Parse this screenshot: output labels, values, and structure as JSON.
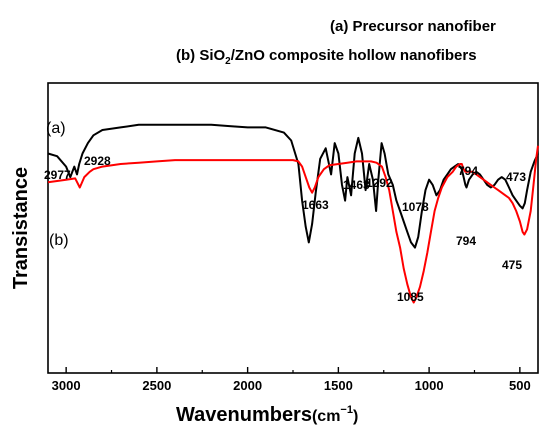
{
  "chart_data": {
    "type": "line",
    "xlabel": "Wavenumbers",
    "xunit": "(cm",
    "xunit_exp": "−1",
    "xunit_close": ")",
    "ylabel": "Transistance",
    "xlim": [
      3100,
      400
    ],
    "x_reversed": true,
    "xticks": [
      3000,
      2500,
      2000,
      1500,
      1000,
      500
    ],
    "xticklabels": [
      "3000",
      "2500",
      "2000",
      "1500",
      "1000",
      "500"
    ],
    "y_ticks_shown": false,
    "grid": false,
    "legend": {
      "placement": "top-right",
      "entries": [
        {
          "parts": [
            "(a)  Precursor nanofiber"
          ]
        },
        {
          "parts": [
            "(b) SiO",
            "2",
            "/ZnO composite hollow nanofibers"
          ]
        }
      ]
    },
    "series": [
      {
        "label": "(a)",
        "color": "#000000",
        "x": [
          3100,
          3050,
          3000,
          2977,
          2955,
          2940,
          2928,
          2910,
          2880,
          2850,
          2800,
          2700,
          2600,
          2500,
          2400,
          2300,
          2200,
          2100,
          2000,
          1900,
          1800,
          1760,
          1720,
          1700,
          1680,
          1663,
          1645,
          1625,
          1600,
          1570,
          1540,
          1520,
          1500,
          1480,
          1463,
          1450,
          1430,
          1410,
          1390,
          1370,
          1350,
          1330,
          1310,
          1292,
          1280,
          1262,
          1245,
          1225,
          1200,
          1180,
          1160,
          1140,
          1120,
          1100,
          1078,
          1060,
          1040,
          1020,
          1000,
          980,
          960,
          940,
          920,
          900,
          880,
          860,
          840,
          820,
          800,
          794,
          780,
          760,
          740,
          720,
          700,
          680,
          660,
          640,
          620,
          600,
          580,
          560,
          540,
          520,
          500,
          485,
          473,
          460,
          440,
          420,
          400
        ],
        "y": [
          40,
          39,
          35,
          31,
          35,
          32,
          36,
          40,
          44,
          47,
          49,
          50,
          51,
          51,
          51,
          51,
          51,
          50.5,
          50,
          50,
          48,
          45,
          36,
          22,
          12,
          6,
          13,
          25,
          38,
          42,
          32,
          44,
          40,
          28,
          22,
          31,
          24,
          40,
          46,
          40,
          26,
          36,
          30,
          18,
          30,
          44,
          40,
          32,
          28,
          22,
          18,
          14,
          10,
          6,
          4,
          8,
          18,
          26,
          30,
          28,
          24,
          26,
          30,
          32,
          34,
          35,
          36,
          34,
          28,
          27,
          30,
          32,
          33,
          32,
          30,
          28,
          27,
          28,
          30,
          31,
          30,
          27,
          24,
          22,
          20,
          19,
          21,
          26,
          33,
          37,
          40
        ]
      },
      {
        "label": "(b)",
        "color": "#ff0000",
        "x": [
          3100,
          3050,
          3000,
          2950,
          2925,
          2900,
          2870,
          2850,
          2800,
          2700,
          2600,
          2500,
          2400,
          2300,
          2200,
          2100,
          2000,
          1900,
          1800,
          1750,
          1720,
          1700,
          1680,
          1660,
          1645,
          1630,
          1610,
          1580,
          1550,
          1500,
          1450,
          1400,
          1360,
          1320,
          1290,
          1260,
          1240,
          1220,
          1200,
          1180,
          1160,
          1140,
          1120,
          1100,
          1085,
          1070,
          1050,
          1030,
          1010,
          990,
          970,
          950,
          930,
          900,
          870,
          850,
          830,
          820,
          810,
          800,
          794,
          780,
          760,
          740,
          720,
          700,
          680,
          660,
          640,
          620,
          600,
          580,
          560,
          540,
          520,
          500,
          485,
          475,
          460,
          440,
          425,
          410,
          400
        ],
        "y": [
          29,
          29.5,
          30,
          30.5,
          27,
          31,
          33,
          34,
          35,
          36,
          36.5,
          37,
          37.5,
          37.5,
          37.5,
          37.5,
          37.5,
          37.5,
          37.5,
          37.5,
          37,
          35,
          31,
          27,
          25,
          27,
          31,
          34,
          35.5,
          36,
          36.5,
          37,
          37,
          37,
          36.5,
          35,
          31,
          26,
          18,
          10,
          4,
          -4,
          -10,
          -15,
          -17,
          -15,
          -11,
          -5,
          2,
          10,
          18,
          23,
          27,
          31,
          33,
          35,
          36,
          36,
          34,
          33,
          33,
          33,
          33,
          32,
          31,
          30,
          29,
          28,
          27,
          26,
          25,
          24,
          23,
          21,
          18,
          14,
          10,
          9,
          11,
          18,
          28,
          38,
          43
        ]
      }
    ],
    "annotations": {
      "series_a": [
        "2977",
        "2928",
        "1663",
        "1463",
        "1292",
        "1078",
        "794",
        "473"
      ],
      "series_b": [
        "1085",
        "794",
        "475"
      ]
    }
  }
}
